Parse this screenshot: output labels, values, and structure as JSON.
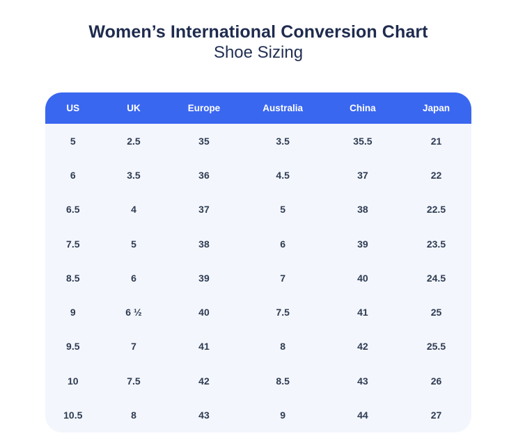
{
  "page": {
    "title": "Women’s International Conversion Chart",
    "subtitle": "Shoe Sizing"
  },
  "colors": {
    "header_bg": "#3a67f0",
    "header_text": "#ffffff",
    "body_bg": "#f3f6fc",
    "body_text": "#2e3b52",
    "title_text": "#1f2b4e"
  },
  "chart_data": {
    "type": "table",
    "title": "Women’s International Conversion Chart",
    "subtitle": "Shoe Sizing",
    "columns": [
      "US",
      "UK",
      "Europe",
      "Australia",
      "China",
      "Japan"
    ],
    "rows": [
      [
        "5",
        "2.5",
        "35",
        "3.5",
        "35.5",
        "21"
      ],
      [
        "6",
        "3.5",
        "36",
        "4.5",
        "37",
        "22"
      ],
      [
        "6.5",
        "4",
        "37",
        "5",
        "38",
        "22.5"
      ],
      [
        "7.5",
        "5",
        "38",
        "6",
        "39",
        "23.5"
      ],
      [
        "8.5",
        "6",
        "39",
        "7",
        "40",
        "24.5"
      ],
      [
        "9",
        "6 ½",
        "40",
        "7.5",
        "41",
        "25"
      ],
      [
        "9.5",
        "7",
        "41",
        "8",
        "42",
        "25.5"
      ],
      [
        "10",
        "7.5",
        "42",
        "8.5",
        "43",
        "26"
      ],
      [
        "10.5",
        "8",
        "43",
        "9",
        "44",
        "27"
      ]
    ]
  }
}
